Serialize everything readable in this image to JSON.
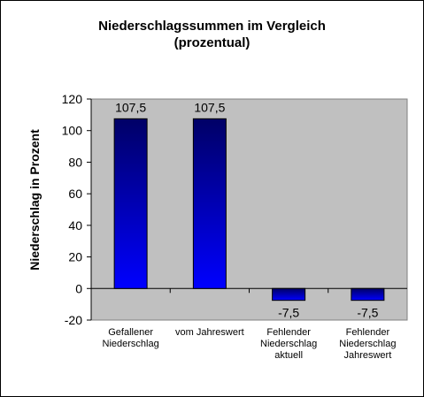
{
  "chart_data": {
    "type": "bar",
    "title_lines": [
      "Niederschlagssummen  im Vergleich",
      "(prozentual)"
    ],
    "ylabel": "Niederschlag in Prozent",
    "xlabel": "",
    "categories": [
      [
        "Gefallener",
        "Niederschlag"
      ],
      [
        "vom Jahreswert"
      ],
      [
        "Fehlender",
        "Niederschlag",
        "aktuell"
      ],
      [
        "Fehlender",
        "Niederschlag",
        "Jahreswert"
      ]
    ],
    "values": [
      107.5,
      107.5,
      -7.5,
      -7.5
    ],
    "data_labels": [
      "107,5",
      "107,5",
      "-7,5",
      "-7,5"
    ],
    "ylim": [
      -20,
      120
    ],
    "yticks": [
      -20,
      0,
      20,
      40,
      60,
      80,
      100,
      120
    ],
    "grid": false,
    "legend": "none",
    "colors": {
      "plot_background": "#c0c0c0",
      "bar_top": "#000066",
      "bar_bottom": "#0000ff",
      "bar_outline": "#000000"
    }
  }
}
